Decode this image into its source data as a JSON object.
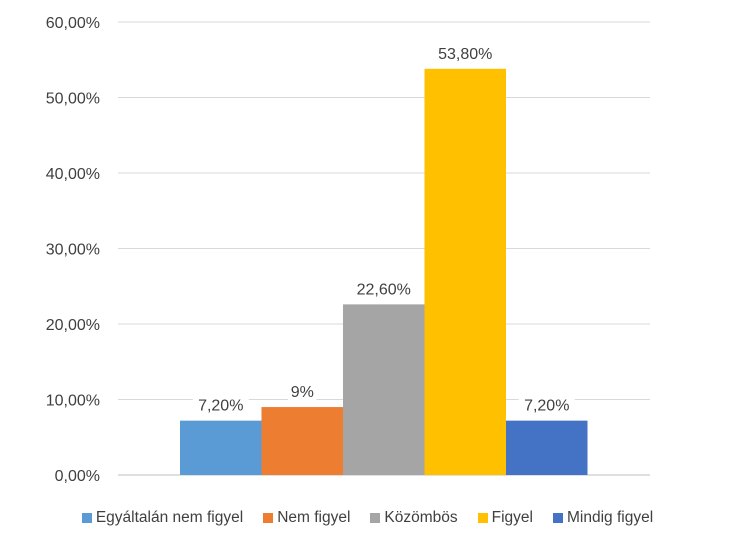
{
  "chart_data": {
    "type": "bar",
    "title": "",
    "xlabel": "",
    "ylabel": "",
    "ylim": [
      0,
      60
    ],
    "yticks": [
      "0,00%",
      "10,00%",
      "20,00%",
      "30,00%",
      "40,00%",
      "50,00%",
      "60,00%"
    ],
    "grid": true,
    "legend_position": "bottom",
    "series": [
      {
        "name": "Egyáltalán nem figyel",
        "value": 7.2,
        "label": "7,20%",
        "color": "#5B9BD5"
      },
      {
        "name": "Nem figyel",
        "value": 9,
        "label": "9%",
        "color": "#ED7D31"
      },
      {
        "name": "Közömbös",
        "value": 22.6,
        "label": "22,60%",
        "color": "#A5A5A5"
      },
      {
        "name": "Figyel",
        "value": 53.8,
        "label": "53,80%",
        "color": "#FFC000"
      },
      {
        "name": "Mindig figyel",
        "value": 7.2,
        "label": "7,20%",
        "color": "#4472C4"
      }
    ]
  }
}
